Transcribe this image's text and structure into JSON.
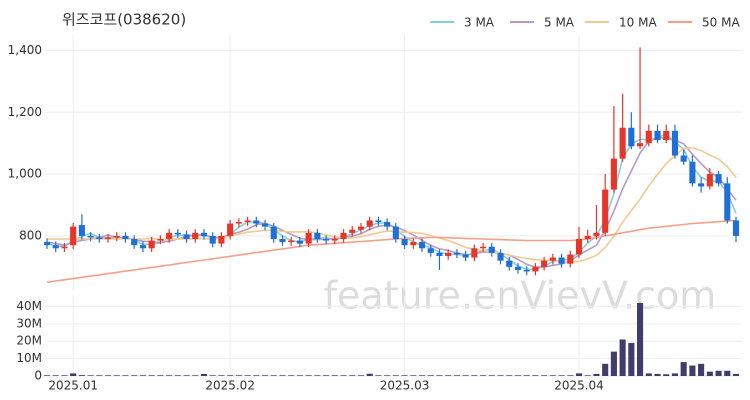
{
  "chart_data": [
    {
      "type": "candlestick",
      "title": "위즈코프(038620)",
      "watermark": "feature.enVievV.com",
      "categories": [
        null,
        null,
        null,
        "2025.01",
        null,
        null,
        null,
        null,
        null,
        null,
        null,
        null,
        null,
        null,
        null,
        null,
        null,
        null,
        null,
        null,
        null,
        "2025.02",
        null,
        null,
        null,
        null,
        null,
        null,
        null,
        null,
        null,
        null,
        null,
        null,
        null,
        null,
        null,
        null,
        null,
        null,
        null,
        "2025.03",
        null,
        null,
        null,
        null,
        null,
        null,
        null,
        null,
        null,
        null,
        null,
        null,
        null,
        null,
        null,
        null,
        null,
        null,
        null,
        "2025.04",
        null,
        null,
        null,
        null,
        null,
        null,
        null,
        null,
        null,
        null,
        null,
        null,
        null,
        null,
        null,
        null,
        null,
        null
      ],
      "open": [
        780,
        770,
        760,
        770,
        835,
        800,
        795,
        790,
        795,
        800,
        790,
        770,
        760,
        785,
        790,
        810,
        805,
        790,
        810,
        800,
        775,
        800,
        840,
        845,
        850,
        840,
        830,
        790,
        780,
        785,
        775,
        810,
        790,
        785,
        790,
        810,
        820,
        830,
        850,
        845,
        830,
        790,
        770,
        780,
        760,
        745,
        735,
        745,
        740,
        730,
        760,
        765,
        745,
        720,
        700,
        690,
        685,
        700,
        720,
        730,
        710,
        740,
        790,
        800,
        810,
        950,
        1050,
        1150,
        1090,
        1100,
        1140,
        1110,
        1140,
        1060,
        1040,
        970,
        960,
        1000,
        970,
        850
      ],
      "high": [
        792,
        782,
        777,
        842,
        870,
        812,
        807,
        807,
        812,
        812,
        802,
        782,
        797,
        802,
        822,
        822,
        817,
        822,
        822,
        812,
        812,
        852,
        857,
        862,
        862,
        852,
        842,
        802,
        797,
        797,
        822,
        822,
        802,
        802,
        822,
        832,
        842,
        862,
        862,
        857,
        842,
        802,
        792,
        792,
        772,
        757,
        757,
        757,
        752,
        772,
        777,
        777,
        757,
        732,
        712,
        702,
        712,
        732,
        742,
        742,
        752,
        830,
        820,
        900,
        1000,
        1220,
        1260,
        1200,
        1410,
        1160,
        1160,
        1160,
        1160,
        1080,
        1060,
        990,
        1020,
        1010,
        990,
        862
      ],
      "low": [
        758,
        748,
        748,
        758,
        788,
        783,
        778,
        778,
        783,
        778,
        758,
        748,
        748,
        773,
        778,
        793,
        778,
        778,
        788,
        763,
        763,
        788,
        828,
        833,
        828,
        818,
        778,
        768,
        768,
        763,
        763,
        778,
        773,
        773,
        778,
        798,
        808,
        818,
        833,
        818,
        778,
        758,
        758,
        748,
        733,
        690,
        723,
        728,
        718,
        718,
        748,
        733,
        708,
        688,
        678,
        673,
        673,
        688,
        708,
        698,
        698,
        728,
        778,
        788,
        800,
        940,
        1040,
        1080,
        1080,
        1090,
        1100,
        1100,
        1050,
        1030,
        960,
        940,
        950,
        960,
        840,
        780
      ],
      "close": [
        770,
        760,
        765,
        830,
        800,
        795,
        790,
        795,
        800,
        790,
        770,
        760,
        785,
        790,
        810,
        805,
        790,
        810,
        800,
        775,
        800,
        840,
        845,
        850,
        840,
        830,
        790,
        780,
        785,
        775,
        810,
        790,
        785,
        790,
        810,
        820,
        830,
        850,
        845,
        830,
        790,
        770,
        780,
        760,
        745,
        735,
        745,
        740,
        730,
        760,
        765,
        745,
        720,
        700,
        690,
        685,
        700,
        720,
        730,
        710,
        740,
        790,
        800,
        810,
        950,
        1050,
        1150,
        1090,
        1100,
        1140,
        1110,
        1140,
        1060,
        1040,
        970,
        960,
        1000,
        970,
        850,
        800
      ],
      "up_color": "#e8352a",
      "down_color": "#1f6fd8",
      "series": [
        {
          "name": "3 MA",
          "color": "#7fd3d6",
          "values": [
            775,
            768,
            765,
            785,
            798,
            808,
            795,
            793,
            795,
            795,
            787,
            773,
            772,
            778,
            795,
            802,
            802,
            802,
            800,
            795,
            792,
            805,
            828,
            845,
            845,
            840,
            820,
            800,
            785,
            780,
            790,
            792,
            795,
            788,
            795,
            807,
            820,
            833,
            842,
            842,
            822,
            797,
            780,
            770,
            762,
            747,
            742,
            740,
            738,
            743,
            752,
            757,
            743,
            722,
            703,
            692,
            692,
            702,
            717,
            720,
            727,
            747,
            777,
            800,
            853,
            937,
            1050,
            1097,
            1113,
            1110,
            1117,
            1130,
            1103,
            1080,
            1023,
            990,
            977,
            977,
            940,
            873
          ]
        },
        {
          "name": "5 MA",
          "color": "#b49cc8",
          "values": [
            780,
            775,
            770,
            780,
            785,
            790,
            796,
            802,
            796,
            794,
            789,
            783,
            781,
            779,
            783,
            790,
            798,
            803,
            803,
            796,
            795,
            805,
            812,
            822,
            836,
            841,
            831,
            818,
            805,
            792,
            788,
            788,
            789,
            792,
            794,
            799,
            807,
            821,
            831,
            835,
            829,
            817,
            803,
            786,
            769,
            758,
            753,
            745,
            739,
            742,
            748,
            748,
            744,
            738,
            724,
            708,
            699,
            699,
            705,
            709,
            720,
            738,
            754,
            770,
            818,
            880,
            952,
            1010,
            1068,
            1106,
            1118,
            1116,
            1110,
            1098,
            1064,
            1034,
            1006,
            990,
            952,
            916
          ]
        },
        {
          "name": "10 MA",
          "color": "#f5c890",
          "values": [
            790,
            790,
            790,
            790,
            790,
            790,
            790,
            790,
            790,
            790,
            790,
            790,
            792,
            788,
            789,
            790,
            790,
            791,
            791,
            789,
            792,
            800,
            806,
            812,
            815,
            818,
            818,
            815,
            813,
            813,
            814,
            809,
            803,
            797,
            794,
            793,
            797,
            804,
            810,
            816,
            814,
            812,
            811,
            808,
            801,
            793,
            785,
            774,
            763,
            756,
            753,
            750,
            744,
            738,
            732,
            727,
            723,
            721,
            721,
            716,
            714,
            718,
            726,
            737,
            763,
            799,
            844,
            882,
            919,
            962,
            999,
            1034,
            1060,
            1083,
            1085,
            1076,
            1061,
            1049,
            1024,
            990
          ]
        },
        {
          "name": "50 MA",
          "color": "#f4a08a",
          "values": [
            650,
            654,
            658,
            662,
            666,
            670,
            674,
            678,
            682,
            686,
            690,
            694,
            698,
            702,
            706,
            710,
            714,
            718,
            722,
            726,
            730,
            734,
            738,
            742,
            746,
            750,
            754,
            758,
            762,
            766,
            770,
            772,
            774,
            776,
            778,
            780,
            782,
            784,
            786,
            788,
            790,
            792,
            793,
            794,
            795,
            795,
            794,
            793,
            792,
            791,
            790,
            789,
            788,
            787,
            786,
            785,
            785,
            785,
            785,
            785,
            785,
            787,
            790,
            795,
            800,
            805,
            810,
            815,
            820,
            825,
            828,
            831,
            834,
            837,
            840,
            842,
            844,
            846,
            848,
            850
          ]
        }
      ],
      "ylim": [
        625,
        1450
      ],
      "yticks": [
        {
          "value": 800,
          "label": "800"
        },
        {
          "value": 1000,
          "label": "1,000"
        },
        {
          "value": 1200,
          "label": "1,200"
        },
        {
          "value": 1400,
          "label": "1,400"
        }
      ],
      "grid": true,
      "legend": "top-right"
    },
    {
      "type": "bar",
      "color": "#3e3d6b",
      "values": [
        400000,
        400000,
        400000,
        1500000,
        500000,
        400000,
        400000,
        400000,
        400000,
        400000,
        400000,
        400000,
        400000,
        400000,
        400000,
        400000,
        400000,
        400000,
        1200000,
        400000,
        400000,
        400000,
        400000,
        400000,
        400000,
        400000,
        400000,
        400000,
        400000,
        400000,
        400000,
        400000,
        400000,
        400000,
        400000,
        400000,
        400000,
        1300000,
        400000,
        400000,
        400000,
        400000,
        400000,
        400000,
        400000,
        400000,
        400000,
        400000,
        400000,
        400000,
        400000,
        400000,
        400000,
        400000,
        400000,
        400000,
        400000,
        400000,
        400000,
        400000,
        400000,
        1500000,
        400000,
        1200000,
        7000000,
        14000000,
        21000000,
        19000000,
        42000000,
        1500000,
        1200000,
        1000000,
        1500000,
        8000000,
        6000000,
        7000000,
        2500000,
        3000000,
        3000000,
        1200000
      ],
      "ylim": [
        0,
        46000000
      ],
      "yticks": [
        {
          "value": 0,
          "label": "0"
        },
        {
          "value": 10000000,
          "label": "10M"
        },
        {
          "value": 20000000,
          "label": "20M"
        },
        {
          "value": 30000000,
          "label": "30M"
        },
        {
          "value": 40000000,
          "label": "40M"
        }
      ],
      "grid": true
    }
  ]
}
